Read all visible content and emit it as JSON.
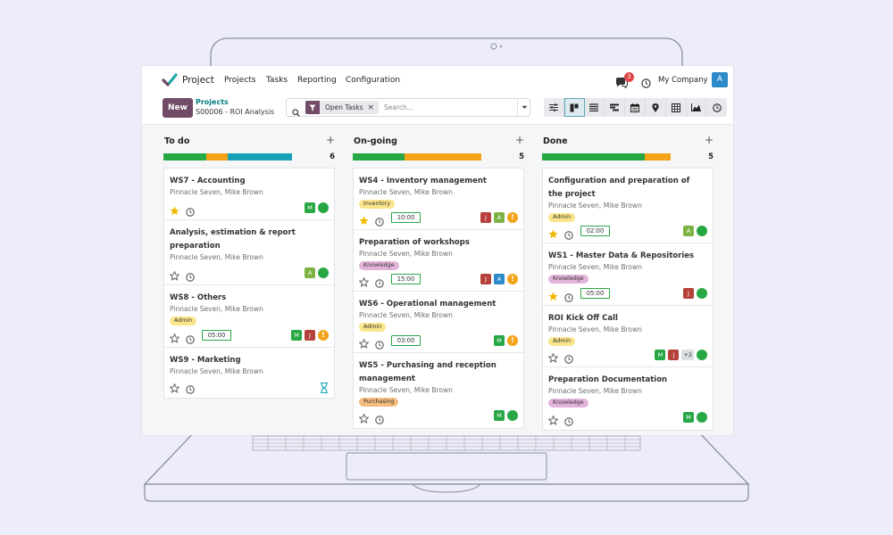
{
  "app": {
    "name": "Project",
    "company": "My Company",
    "user_initial": "A",
    "notification_count": "3"
  },
  "menu": [
    "Projects",
    "Tasks",
    "Reporting",
    "Configuration"
  ],
  "toolbar": {
    "new_label": "New",
    "breadcrumb_parent": "Projects",
    "breadcrumb_current": "S00006 - ROI Analysis"
  },
  "search": {
    "facet": "Open Tasks",
    "placeholder": "Search..."
  },
  "views": [
    "filter-toggle-icon",
    "kanban-icon",
    "list-icon",
    "gantt-icon",
    "calendar-icon",
    "map-icon",
    "pivot-icon",
    "graph-icon",
    "activity-icon"
  ],
  "colors": {
    "accent": "#714b67",
    "green": "#28a745",
    "orange": "#f2a318",
    "teal": "#17a2b8",
    "red": "#d44b4b"
  },
  "columns": [
    {
      "title": "To do",
      "count": "6",
      "progress": [
        {
          "color": "#28a745",
          "value": 2
        },
        {
          "color": "#f2a318",
          "value": 1
        },
        {
          "color": "#17a2b8",
          "value": 3
        }
      ],
      "cards": [
        {
          "title": "WS7 - Accounting",
          "sub": "Pinnacle Seven, Mike Brown",
          "tag": "",
          "starred": true,
          "deadline": "",
          "avatars": [
            {
              "l": "M",
              "c": "#28a745"
            }
          ],
          "state": "done"
        },
        {
          "title": "Analysis, estimation & report preparation",
          "sub": "Pinnacle Seven, Mike Brown",
          "tag": "",
          "starred": false,
          "deadline": "",
          "avatars": [
            {
              "l": "A",
              "c": "#7cb342"
            }
          ],
          "state": "done"
        },
        {
          "title": "WS8 - Others",
          "sub": "Pinnacle Seven, Mike Brown",
          "tag": "Admin",
          "tagColor": "#fbe58a",
          "starred": false,
          "deadline": "05:00",
          "avatars": [
            {
              "l": "M",
              "c": "#28a745"
            },
            {
              "l": "J",
              "c": "#b5413a"
            }
          ],
          "state": "warn"
        },
        {
          "title": "WS9 - Marketing",
          "sub": "Pinnacle Seven, Mike Brown",
          "tag": "",
          "starred": false,
          "deadline": "",
          "avatars": [],
          "state": "hourglass"
        }
      ]
    },
    {
      "title": "On-going",
      "count": "5",
      "progress": [
        {
          "color": "#28a745",
          "value": 2
        },
        {
          "color": "#f2a318",
          "value": 3
        }
      ],
      "cards": [
        {
          "title": "WS4 - Inventory management",
          "sub": "Pinnacle Seven, Mike Brown",
          "tag": "Inventory",
          "tagColor": "#fbe58a",
          "starred": true,
          "deadline": "10:00",
          "avatars": [
            {
              "l": "J",
              "c": "#b5413a"
            },
            {
              "l": "A",
              "c": "#7cb342"
            }
          ],
          "state": "warn"
        },
        {
          "title": "Preparation of workshops",
          "sub": "Pinnacle Seven, Mike Brown",
          "tag": "Knowledge",
          "tagColor": "#e3b4da",
          "starred": false,
          "deadline": "15:00",
          "avatars": [
            {
              "l": "J",
              "c": "#b5413a"
            },
            {
              "l": "A",
              "c": "#2c8ac8"
            }
          ],
          "state": "warn"
        },
        {
          "title": "WS6 - Operational management",
          "sub": "Pinnacle Seven, Mike Brown",
          "tag": "Admin",
          "tagColor": "#fbe58a",
          "starred": false,
          "deadline": "03:00",
          "avatars": [
            {
              "l": "M",
              "c": "#28a745"
            }
          ],
          "state": "warn"
        },
        {
          "title": "WS5 - Purchasing and reception management",
          "sub": "Pinnacle Seven, Mike Brown",
          "tag": "Purchasing",
          "tagColor": "#f6bc7e",
          "starred": false,
          "deadline": "",
          "avatars": [
            {
              "l": "M",
              "c": "#28a745"
            }
          ],
          "state": "done"
        }
      ]
    },
    {
      "title": "Done",
      "count": "5",
      "progress": [
        {
          "color": "#28a745",
          "value": 4
        },
        {
          "color": "#f2a318",
          "value": 1
        }
      ],
      "cards": [
        {
          "title": "Configuration and preparation of the project",
          "sub": "Pinnacle Seven, Mike Brown",
          "tag": "Admin",
          "tagColor": "#fbe58a",
          "starred": true,
          "deadline": "02:00",
          "avatars": [
            {
              "l": "A",
              "c": "#7cb342"
            }
          ],
          "state": "done"
        },
        {
          "title": "WS1 - Master Data & Repositories",
          "sub": "Pinnacle Seven, Mike Brown",
          "tag": "Knowledge",
          "tagColor": "#e3b4da",
          "starred": true,
          "deadline": "05:00",
          "avatars": [
            {
              "l": "J",
              "c": "#b5413a"
            }
          ],
          "state": "done"
        },
        {
          "title": "ROI Kick Off Call",
          "sub": "Pinnacle Seven, Mike Brown",
          "tag": "Admin",
          "tagColor": "#fbe58a",
          "starred": false,
          "deadline": "",
          "avatars": [
            {
              "l": "M",
              "c": "#28a745"
            },
            {
              "l": "J",
              "c": "#b5413a"
            }
          ],
          "more": "+2",
          "state": "done"
        },
        {
          "title": "Preparation Documentation",
          "sub": "Pinnacle Seven, Mike Brown",
          "tag": "Knowledge",
          "tagColor": "#e3b4da",
          "starred": false,
          "deadline": "",
          "avatars": [
            {
              "l": "M",
              "c": "#28a745"
            }
          ],
          "state": "done"
        }
      ]
    }
  ]
}
